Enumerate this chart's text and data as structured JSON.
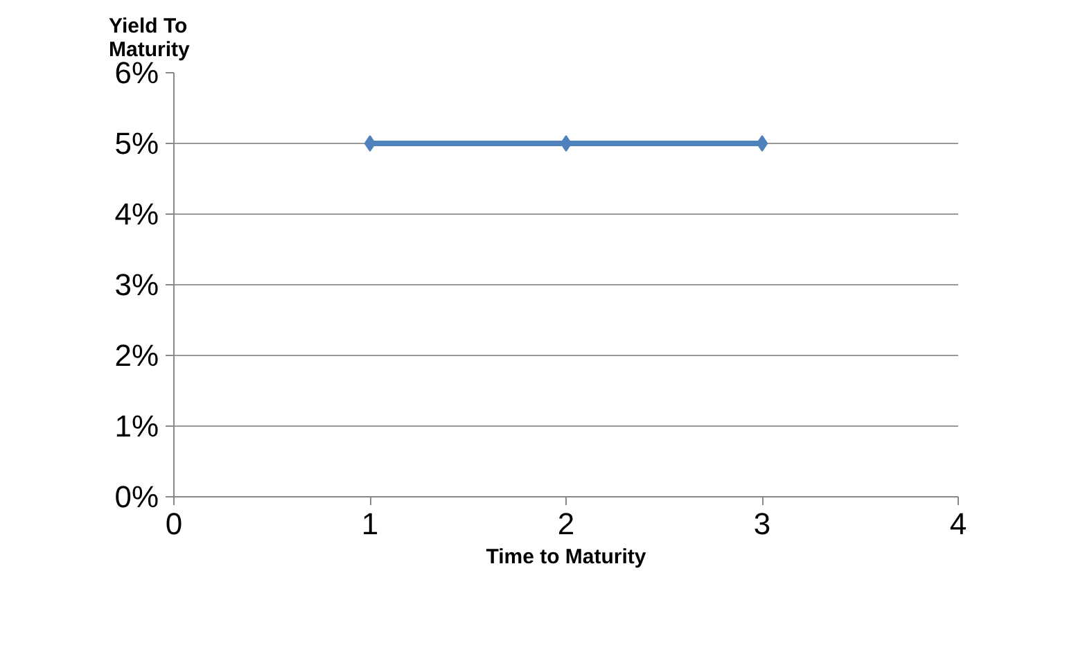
{
  "chart_data": {
    "type": "line",
    "xlabel": "Time to Maturity",
    "ylabel": "Yield To\nMaturity",
    "x": [
      1,
      2,
      3
    ],
    "series": [
      {
        "color": "#4f81bd",
        "values": [
          5,
          5,
          5
        ]
      }
    ],
    "xlim": [
      0,
      4
    ],
    "xticks": [
      0,
      1,
      2,
      3,
      4
    ],
    "ylim": [
      0,
      6
    ],
    "yticks": [
      {
        "value": 0,
        "label": "0%"
      },
      {
        "value": 1,
        "label": "1%"
      },
      {
        "value": 2,
        "label": "2%"
      },
      {
        "value": 3,
        "label": "3%"
      },
      {
        "value": 4,
        "label": "4%"
      },
      {
        "value": 5,
        "label": "5%"
      },
      {
        "value": 6,
        "label": "6%"
      }
    ],
    "grid": "y",
    "marker": "diamond",
    "line_style": "solid"
  }
}
